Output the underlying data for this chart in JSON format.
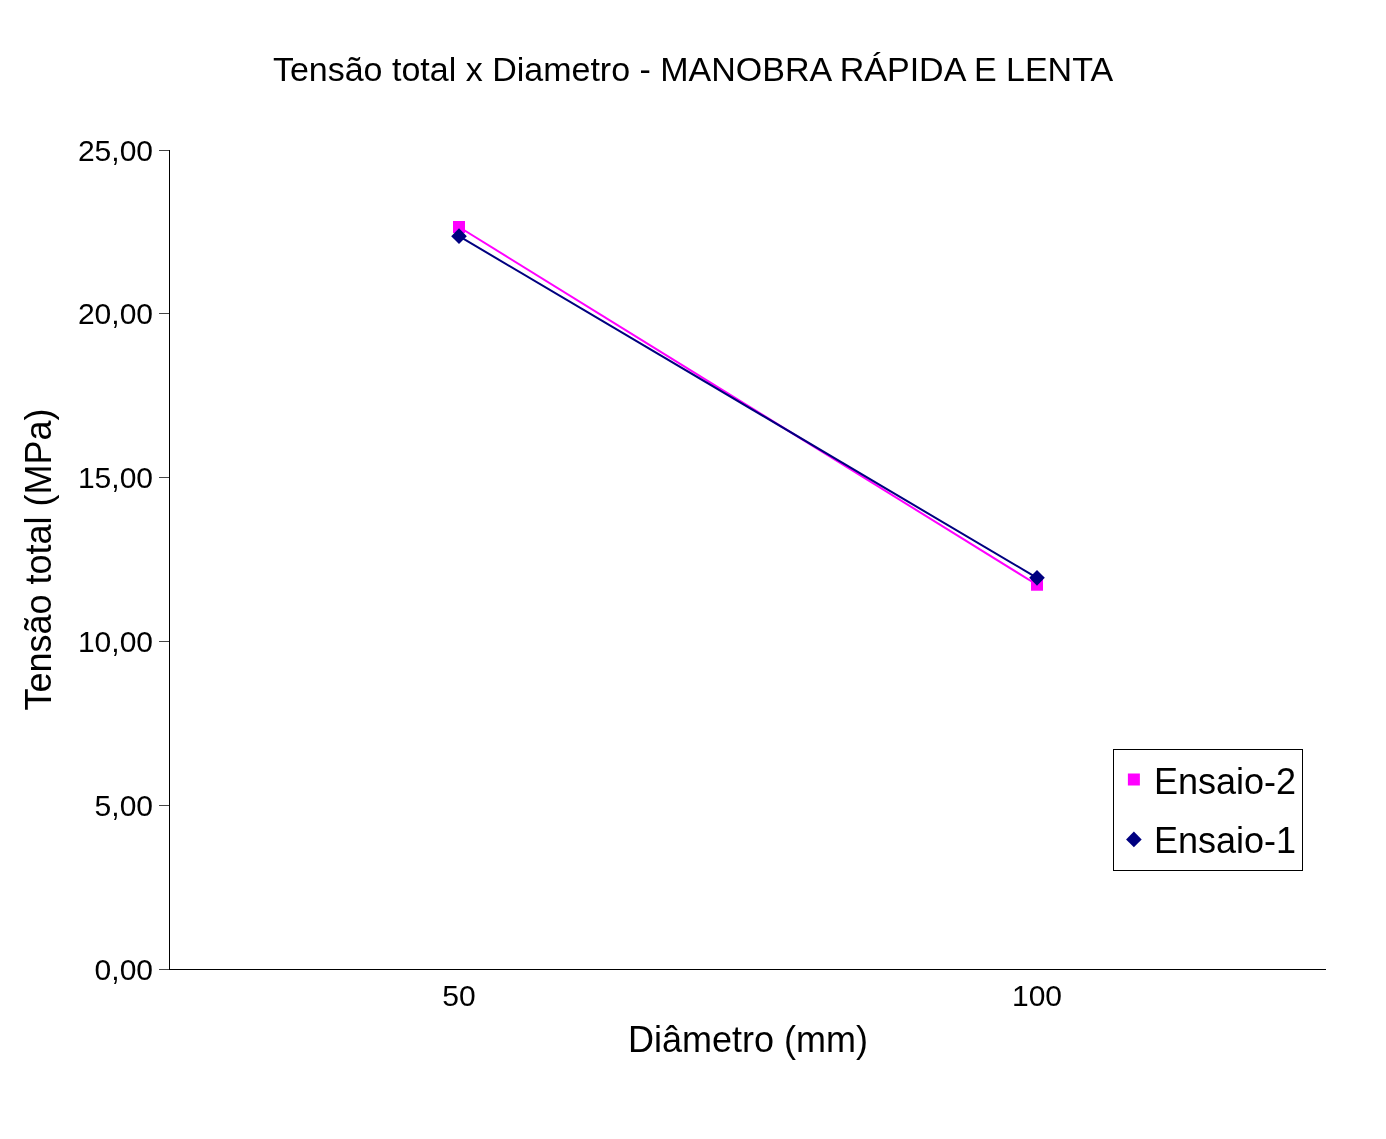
{
  "chart_data": {
    "type": "line",
    "title": "Tensão total x Diametro - MANOBRA RÁPIDA E LENTA",
    "xlabel": "Diâmetro (mm)",
    "ylabel": "Tensão total (MPa)",
    "categories": [
      "50",
      "100"
    ],
    "series": [
      {
        "name": "Ensaio-2",
        "color": "#ff00ff",
        "marker": "square",
        "values": [
          22.65,
          11.73
        ]
      },
      {
        "name": "Ensaio-1",
        "color": "#000080",
        "marker": "diamond",
        "values": [
          22.37,
          11.94
        ]
      }
    ],
    "ylim": [
      0,
      25
    ],
    "yticks": [
      {
        "value": 0,
        "label": "0,00"
      },
      {
        "value": 5,
        "label": "5,00"
      },
      {
        "value": 10,
        "label": "10,00"
      },
      {
        "value": 15,
        "label": "15,00"
      },
      {
        "value": 20,
        "label": "20,00"
      },
      {
        "value": 25,
        "label": "25,00"
      }
    ],
    "grid": false,
    "legend": "bottom right",
    "line_style": "solid"
  }
}
